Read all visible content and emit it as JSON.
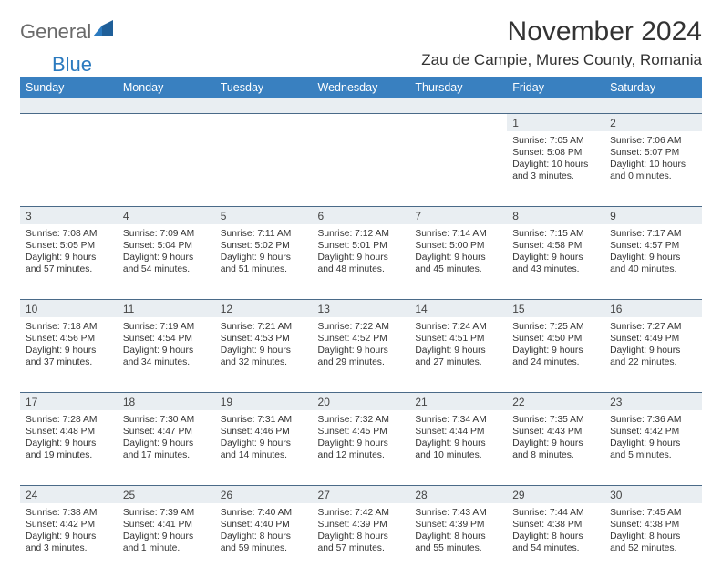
{
  "logo": {
    "word1": "General",
    "word2": "Blue"
  },
  "title": "November 2024",
  "location": "Zau de Campie, Mures County, Romania",
  "colors": {
    "header_bg": "#3980c0",
    "header_text": "#ffffff",
    "daynum_bg": "#e9eef2",
    "row_border": "#4a6a88",
    "logo_gray": "#6a6a6a",
    "logo_blue": "#2b7abf"
  },
  "fonts": {
    "title_size_pt": 22,
    "location_size_pt": 13,
    "dayheader_size_pt": 9,
    "cell_size_pt": 8
  },
  "day_names": [
    "Sunday",
    "Monday",
    "Tuesday",
    "Wednesday",
    "Thursday",
    "Friday",
    "Saturday"
  ],
  "weeks": [
    [
      null,
      null,
      null,
      null,
      null,
      {
        "n": "1",
        "sr": "Sunrise: 7:05 AM",
        "ss": "Sunset: 5:08 PM",
        "d1": "Daylight: 10 hours",
        "d2": "and 3 minutes."
      },
      {
        "n": "2",
        "sr": "Sunrise: 7:06 AM",
        "ss": "Sunset: 5:07 PM",
        "d1": "Daylight: 10 hours",
        "d2": "and 0 minutes."
      }
    ],
    [
      {
        "n": "3",
        "sr": "Sunrise: 7:08 AM",
        "ss": "Sunset: 5:05 PM",
        "d1": "Daylight: 9 hours",
        "d2": "and 57 minutes."
      },
      {
        "n": "4",
        "sr": "Sunrise: 7:09 AM",
        "ss": "Sunset: 5:04 PM",
        "d1": "Daylight: 9 hours",
        "d2": "and 54 minutes."
      },
      {
        "n": "5",
        "sr": "Sunrise: 7:11 AM",
        "ss": "Sunset: 5:02 PM",
        "d1": "Daylight: 9 hours",
        "d2": "and 51 minutes."
      },
      {
        "n": "6",
        "sr": "Sunrise: 7:12 AM",
        "ss": "Sunset: 5:01 PM",
        "d1": "Daylight: 9 hours",
        "d2": "and 48 minutes."
      },
      {
        "n": "7",
        "sr": "Sunrise: 7:14 AM",
        "ss": "Sunset: 5:00 PM",
        "d1": "Daylight: 9 hours",
        "d2": "and 45 minutes."
      },
      {
        "n": "8",
        "sr": "Sunrise: 7:15 AM",
        "ss": "Sunset: 4:58 PM",
        "d1": "Daylight: 9 hours",
        "d2": "and 43 minutes."
      },
      {
        "n": "9",
        "sr": "Sunrise: 7:17 AM",
        "ss": "Sunset: 4:57 PM",
        "d1": "Daylight: 9 hours",
        "d2": "and 40 minutes."
      }
    ],
    [
      {
        "n": "10",
        "sr": "Sunrise: 7:18 AM",
        "ss": "Sunset: 4:56 PM",
        "d1": "Daylight: 9 hours",
        "d2": "and 37 minutes."
      },
      {
        "n": "11",
        "sr": "Sunrise: 7:19 AM",
        "ss": "Sunset: 4:54 PM",
        "d1": "Daylight: 9 hours",
        "d2": "and 34 minutes."
      },
      {
        "n": "12",
        "sr": "Sunrise: 7:21 AM",
        "ss": "Sunset: 4:53 PM",
        "d1": "Daylight: 9 hours",
        "d2": "and 32 minutes."
      },
      {
        "n": "13",
        "sr": "Sunrise: 7:22 AM",
        "ss": "Sunset: 4:52 PM",
        "d1": "Daylight: 9 hours",
        "d2": "and 29 minutes."
      },
      {
        "n": "14",
        "sr": "Sunrise: 7:24 AM",
        "ss": "Sunset: 4:51 PM",
        "d1": "Daylight: 9 hours",
        "d2": "and 27 minutes."
      },
      {
        "n": "15",
        "sr": "Sunrise: 7:25 AM",
        "ss": "Sunset: 4:50 PM",
        "d1": "Daylight: 9 hours",
        "d2": "and 24 minutes."
      },
      {
        "n": "16",
        "sr": "Sunrise: 7:27 AM",
        "ss": "Sunset: 4:49 PM",
        "d1": "Daylight: 9 hours",
        "d2": "and 22 minutes."
      }
    ],
    [
      {
        "n": "17",
        "sr": "Sunrise: 7:28 AM",
        "ss": "Sunset: 4:48 PM",
        "d1": "Daylight: 9 hours",
        "d2": "and 19 minutes."
      },
      {
        "n": "18",
        "sr": "Sunrise: 7:30 AM",
        "ss": "Sunset: 4:47 PM",
        "d1": "Daylight: 9 hours",
        "d2": "and 17 minutes."
      },
      {
        "n": "19",
        "sr": "Sunrise: 7:31 AM",
        "ss": "Sunset: 4:46 PM",
        "d1": "Daylight: 9 hours",
        "d2": "and 14 minutes."
      },
      {
        "n": "20",
        "sr": "Sunrise: 7:32 AM",
        "ss": "Sunset: 4:45 PM",
        "d1": "Daylight: 9 hours",
        "d2": "and 12 minutes."
      },
      {
        "n": "21",
        "sr": "Sunrise: 7:34 AM",
        "ss": "Sunset: 4:44 PM",
        "d1": "Daylight: 9 hours",
        "d2": "and 10 minutes."
      },
      {
        "n": "22",
        "sr": "Sunrise: 7:35 AM",
        "ss": "Sunset: 4:43 PM",
        "d1": "Daylight: 9 hours",
        "d2": "and 8 minutes."
      },
      {
        "n": "23",
        "sr": "Sunrise: 7:36 AM",
        "ss": "Sunset: 4:42 PM",
        "d1": "Daylight: 9 hours",
        "d2": "and 5 minutes."
      }
    ],
    [
      {
        "n": "24",
        "sr": "Sunrise: 7:38 AM",
        "ss": "Sunset: 4:42 PM",
        "d1": "Daylight: 9 hours",
        "d2": "and 3 minutes."
      },
      {
        "n": "25",
        "sr": "Sunrise: 7:39 AM",
        "ss": "Sunset: 4:41 PM",
        "d1": "Daylight: 9 hours",
        "d2": "and 1 minute."
      },
      {
        "n": "26",
        "sr": "Sunrise: 7:40 AM",
        "ss": "Sunset: 4:40 PM",
        "d1": "Daylight: 8 hours",
        "d2": "and 59 minutes."
      },
      {
        "n": "27",
        "sr": "Sunrise: 7:42 AM",
        "ss": "Sunset: 4:39 PM",
        "d1": "Daylight: 8 hours",
        "d2": "and 57 minutes."
      },
      {
        "n": "28",
        "sr": "Sunrise: 7:43 AM",
        "ss": "Sunset: 4:39 PM",
        "d1": "Daylight: 8 hours",
        "d2": "and 55 minutes."
      },
      {
        "n": "29",
        "sr": "Sunrise: 7:44 AM",
        "ss": "Sunset: 4:38 PM",
        "d1": "Daylight: 8 hours",
        "d2": "and 54 minutes."
      },
      {
        "n": "30",
        "sr": "Sunrise: 7:45 AM",
        "ss": "Sunset: 4:38 PM",
        "d1": "Daylight: 8 hours",
        "d2": "and 52 minutes."
      }
    ]
  ]
}
